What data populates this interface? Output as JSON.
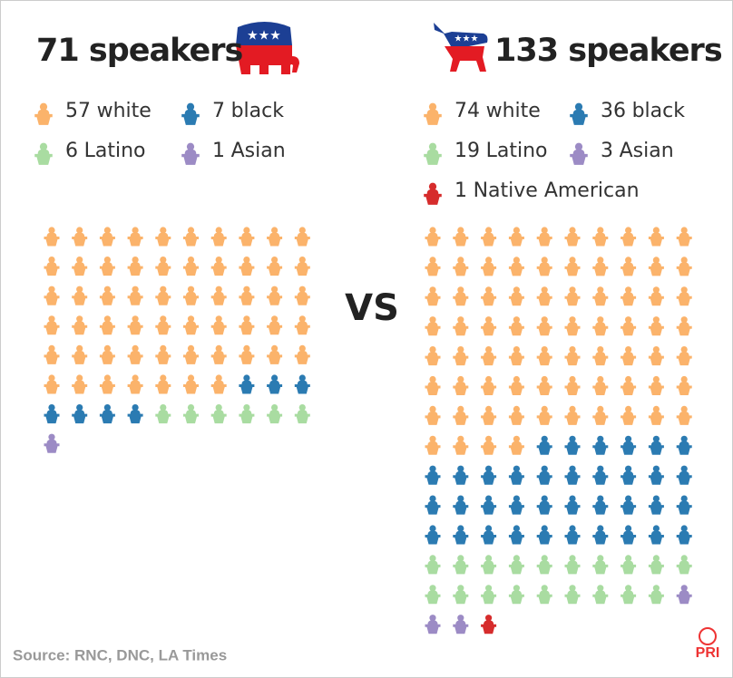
{
  "chart_data": [
    {
      "type": "waffle",
      "title": "71 speakers",
      "columns": 10,
      "series": [
        {
          "name": "white",
          "color": "#fbb36b",
          "value": 57
        },
        {
          "name": "black",
          "color": "#2b7bb2",
          "value": 7
        },
        {
          "name": "Latino",
          "color": "#a9dca1",
          "value": 6
        },
        {
          "name": "Asian",
          "color": "#9c8bc5",
          "value": 1
        }
      ]
    },
    {
      "type": "waffle",
      "title": "133 speakers",
      "columns": 10,
      "series": [
        {
          "name": "white",
          "color": "#fbb36b",
          "value": 74
        },
        {
          "name": "black",
          "color": "#2b7bb2",
          "value": 36
        },
        {
          "name": "Latino",
          "color": "#a9dca1",
          "value": 19
        },
        {
          "name": "Asian",
          "color": "#9c8bc5",
          "value": 3
        },
        {
          "name": "Native American",
          "color": "#d62c2c",
          "value": 1
        }
      ]
    }
  ],
  "separator": "VS",
  "source": "Source: RNC, DNC, LA Times",
  "logo": "PRI"
}
